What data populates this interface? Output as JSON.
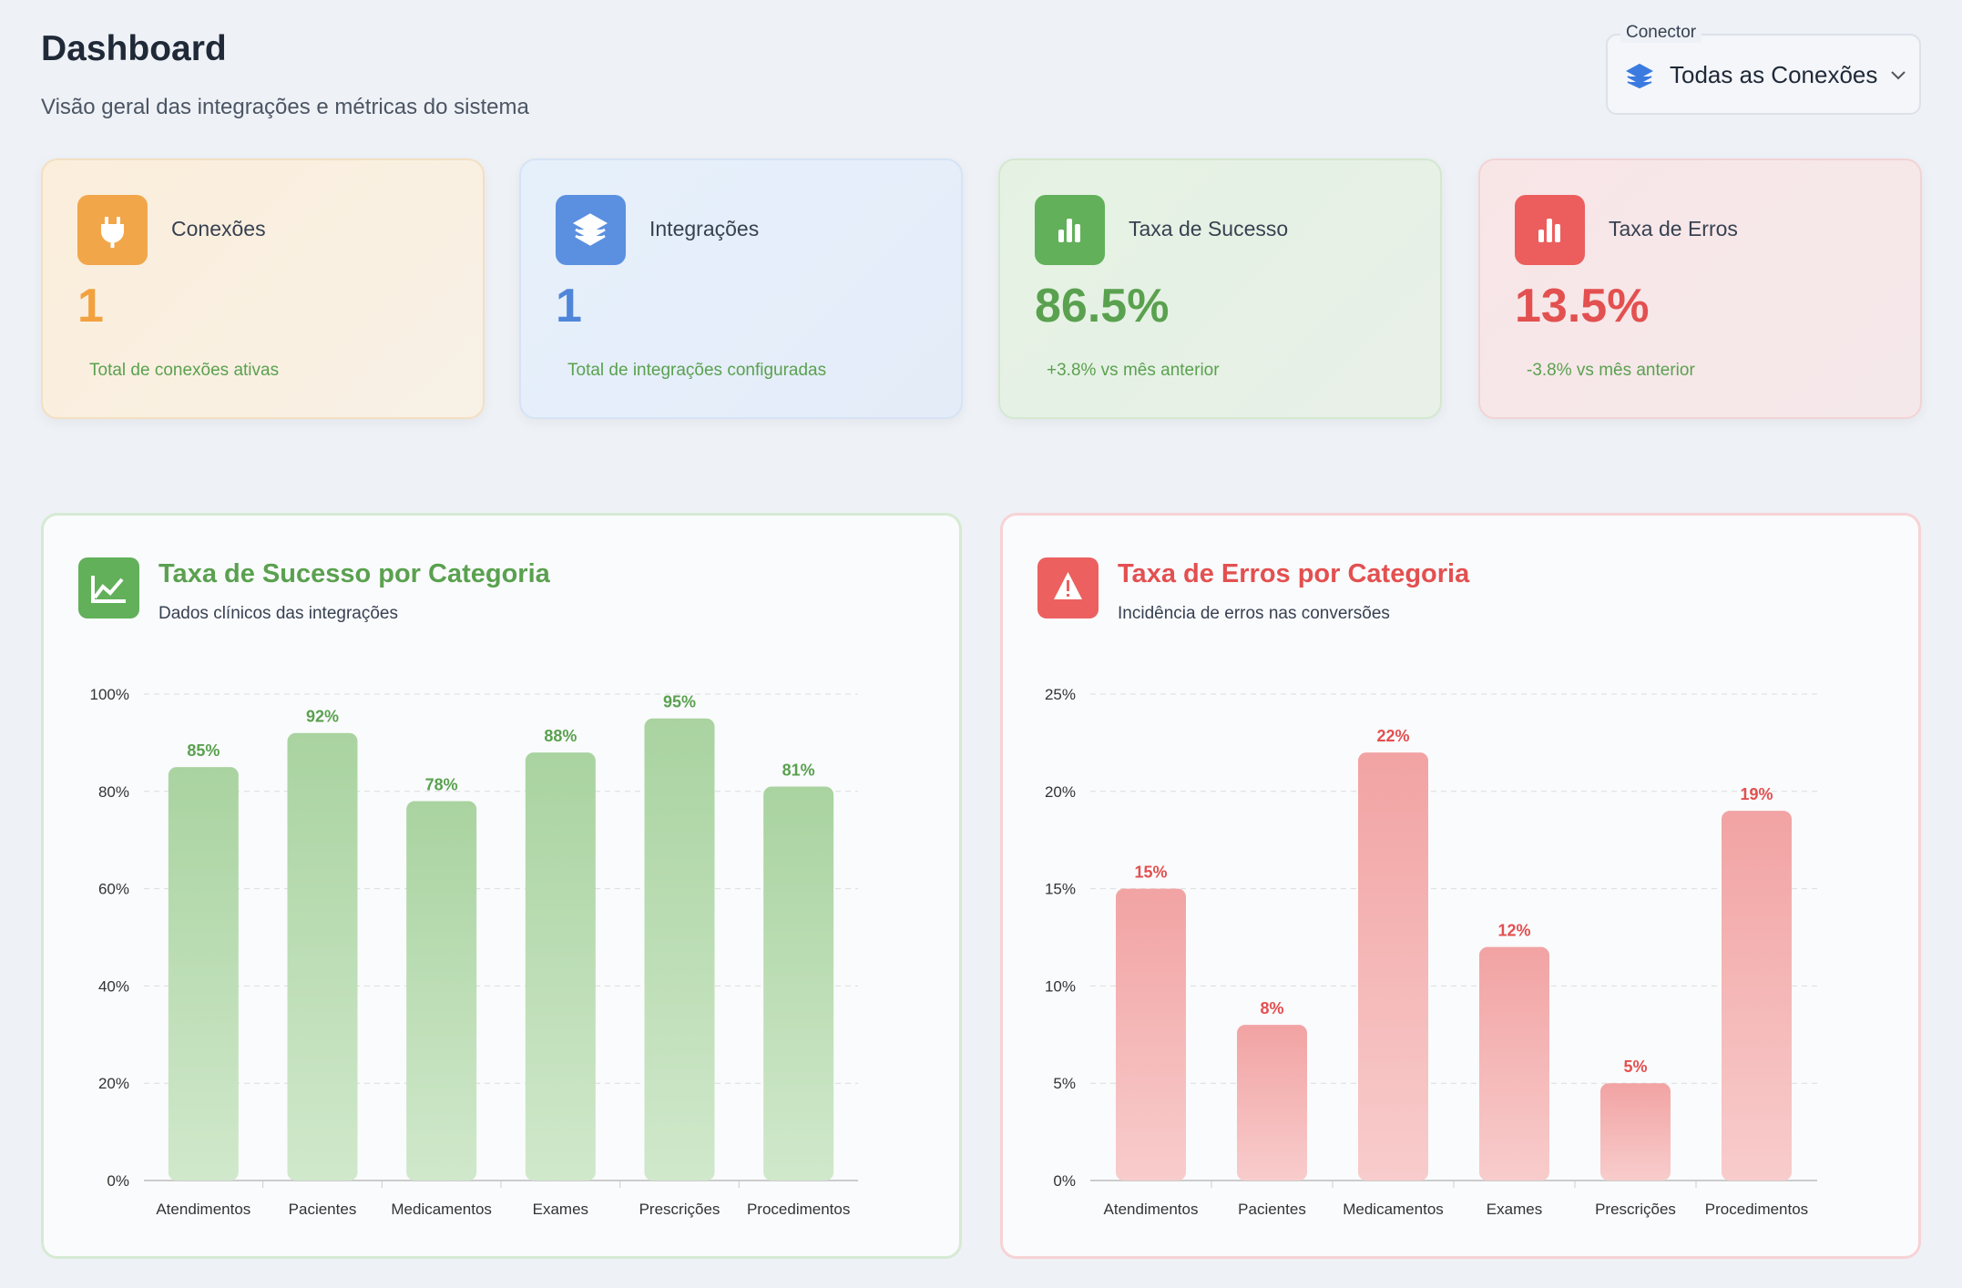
{
  "header": {
    "title": "Dashboard",
    "subtitle": "Visão geral das integrações e métricas do sistema"
  },
  "selector": {
    "label": "Conector",
    "value": "Todas as Conexões"
  },
  "cards": [
    {
      "title": "Conexões",
      "value": "1",
      "note": "Total de conexões ativas"
    },
    {
      "title": "Integrações",
      "value": "1",
      "note": "Total de integrações configuradas"
    },
    {
      "title": "Taxa de Sucesso",
      "value": "86.5%",
      "note": "+3.8% vs mês anterior"
    },
    {
      "title": "Taxa de Erros",
      "value": "13.5%",
      "note": "-3.8% vs mês anterior"
    }
  ],
  "chart_data": [
    {
      "type": "bar",
      "title": "Taxa de Sucesso por Categoria",
      "subtitle": "Dados clínicos das integrações",
      "categories": [
        "Atendimentos",
        "Pacientes",
        "Medicamentos",
        "Exames",
        "Prescrições",
        "Procedimentos"
      ],
      "values": [
        85,
        92,
        78,
        88,
        95,
        81
      ],
      "value_labels": [
        "85%",
        "92%",
        "78%",
        "88%",
        "95%",
        "81%"
      ],
      "color": "#a9d3a0",
      "ylim": [
        0,
        100
      ],
      "yticks": [
        {
          "value": 0,
          "label": "0%"
        },
        {
          "value": 20,
          "label": "20%"
        },
        {
          "value": 40,
          "label": "40%"
        },
        {
          "value": 60,
          "label": "60%"
        },
        {
          "value": 80,
          "label": "80%"
        },
        {
          "value": 100,
          "label": "100%"
        }
      ],
      "grid": true
    },
    {
      "type": "bar",
      "title": "Taxa de Erros por Categoria",
      "subtitle": "Incidência de erros nas conversões",
      "categories": [
        "Atendimentos",
        "Pacientes",
        "Medicamentos",
        "Exames",
        "Prescrições",
        "Procedimentos"
      ],
      "values": [
        15,
        8,
        22,
        12,
        5,
        19
      ],
      "value_labels": [
        "15%",
        "8%",
        "22%",
        "12%",
        "5%",
        "19%"
      ],
      "color": "#f2a3a3",
      "ylim": [
        0,
        25
      ],
      "yticks": [
        {
          "value": 0,
          "label": "0%"
        },
        {
          "value": 5,
          "label": "5%"
        },
        {
          "value": 10,
          "label": "10%"
        },
        {
          "value": 15,
          "label": "15%"
        },
        {
          "value": 20,
          "label": "20%"
        },
        {
          "value": 25,
          "label": "25%"
        }
      ],
      "grid": true
    }
  ]
}
